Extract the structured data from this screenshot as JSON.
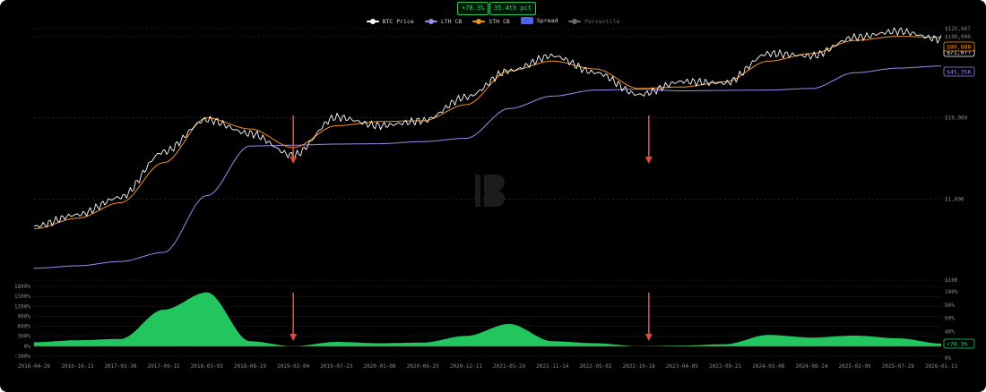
{
  "badges": {
    "spread": "+78.3%",
    "percentile": "35.4th pct"
  },
  "legend": [
    {
      "label": "BTC Price",
      "color": "#ffffff",
      "kind": "line"
    },
    {
      "label": "LTH CB",
      "color": "#9b8cf0",
      "kind": "line"
    },
    {
      "label": "STH CB",
      "color": "#f5921e",
      "kind": "line"
    },
    {
      "label": "Spread",
      "color": "#4f63e8",
      "kind": "box"
    },
    {
      "label": "Percentile",
      "color": "#6b6b6b",
      "kind": "line"
    }
  ],
  "colors": {
    "price": "#ffffff",
    "lth": "#9b8cf0",
    "sth": "#f5921e",
    "spread": "#22c55e",
    "arrow": "#e8473b",
    "grid": "#3a3a3a"
  },
  "icons": {
    "watermark": "bitcoin-logo-icon",
    "arrow": "down-arrow-icon"
  },
  "chart_data": [
    {
      "type": "line",
      "scale": "log",
      "ylim": [
        100,
        125667
      ],
      "y_ticks": [
        {
          "value": 125667,
          "label": "$125,667"
        },
        {
          "value": 100000,
          "label": "$100,000"
        },
        {
          "value": 10000,
          "label": "$10,000"
        },
        {
          "value": 1000,
          "label": "$1,000"
        },
        {
          "value": 100,
          "label": "$100"
        }
      ],
      "last_labels": {
        "sth": "$80,888",
        "lth": "$45,356",
        "price": "$71,0??"
      },
      "x": [
        "2016-04-26",
        "2016-10-13",
        "2017-03-30",
        "2017-09-15",
        "2018-03-03",
        "2018-08-19",
        "2019-02-04",
        "2019-07-23",
        "2020-01-08",
        "2020-06-25",
        "2020-12-11",
        "2021-05-29",
        "2021-11-14",
        "2022-05-02",
        "2022-10-18",
        "2023-04-05",
        "2023-09-21",
        "2024-03-08",
        "2024-08-24",
        "2025-02-09",
        "2025-07-28",
        "2026-01-13"
      ],
      "series": [
        {
          "name": "BTC Price",
          "values": [
            460,
            640,
            1050,
            3800,
            9500,
            6400,
            3450,
            10200,
            8000,
            9200,
            18000,
            38000,
            58000,
            36000,
            19300,
            28000,
            26800,
            62000,
            58000,
            98000,
            117000,
            93000
          ]
        },
        {
          "name": "STH CB",
          "values": [
            430,
            580,
            900,
            2800,
            10000,
            7300,
            4300,
            8000,
            9000,
            9200,
            14500,
            38000,
            50000,
            40000,
            23000,
            24000,
            27800,
            50000,
            62000,
            90000,
            101000,
            98000
          ]
        },
        {
          "name": "LTH CB",
          "values": [
            140,
            150,
            170,
            220,
            1100,
            4500,
            4600,
            4750,
            4800,
            5100,
            5600,
            13000,
            18500,
            22000,
            22500,
            21500,
            21800,
            22000,
            23000,
            36000,
            41000,
            43500
          ]
        }
      ],
      "annotation_x": [
        "2019-02-04",
        "2022-11-26"
      ]
    },
    {
      "type": "area",
      "series_name": "Spread",
      "ylim": [
        -300,
        1800
      ],
      "y_ticks": [
        {
          "value": 1800,
          "label": "1800%"
        },
        {
          "value": 1500,
          "label": "1500%"
        },
        {
          "value": 1200,
          "label": "1200%"
        },
        {
          "value": 900,
          "label": "900%"
        },
        {
          "value": 600,
          "label": "600%"
        },
        {
          "value": 300,
          "label": "300%"
        },
        {
          "value": 0,
          "label": "0%"
        },
        {
          "value": -300,
          "label": "-300%"
        }
      ],
      "right_ticks": [
        "100%",
        "80%",
        "60%",
        "40%",
        "20%",
        "0%"
      ],
      "last_label": "+78.3%",
      "x": [
        "2016-04-26",
        "2016-10-13",
        "2017-03-30",
        "2017-09-15",
        "2018-03-03",
        "2018-08-19",
        "2019-02-04",
        "2019-07-23",
        "2020-01-08",
        "2020-06-25",
        "2020-12-11",
        "2021-05-29",
        "2021-11-14",
        "2022-05-02",
        "2022-10-18",
        "2023-04-05",
        "2023-09-21",
        "2024-03-08",
        "2024-08-24",
        "2025-02-09",
        "2025-07-28",
        "2026-01-13"
      ],
      "values": [
        120,
        180,
        220,
        1100,
        1620,
        150,
        0,
        130,
        90,
        110,
        310,
        670,
        150,
        90,
        0,
        20,
        60,
        340,
        260,
        320,
        240,
        80
      ]
    }
  ]
}
